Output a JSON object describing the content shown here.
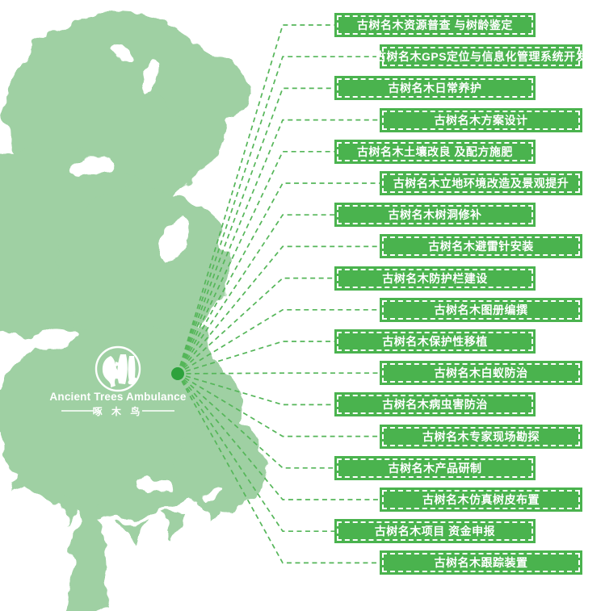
{
  "logo": {
    "title_en": "Ancient Trees Ambulance",
    "title_cn": "啄 木 鸟",
    "emblem": "woodpecker-on-tree-icon"
  },
  "services": [
    {
      "label": "古树名木资源普查 与树龄鉴定"
    },
    {
      "label": "古树名木GPS定位与信息化管理系统开发"
    },
    {
      "label": "古树名木日常养护"
    },
    {
      "label": "古树名木方案设计"
    },
    {
      "label": "古树名木土壤改良 及配方施肥"
    },
    {
      "label": "古树名木立地环境改造及景观提升"
    },
    {
      "label": "古树名木树洞修补"
    },
    {
      "label": "古树名木避雷针安装"
    },
    {
      "label": "古树名木防护栏建设"
    },
    {
      "label": "古树名木图册编撰"
    },
    {
      "label": "古树名木保护性移植"
    },
    {
      "label": "古树名木白蚁防治"
    },
    {
      "label": "古树名木病虫害防治"
    },
    {
      "label": "古树名木专家现场勘探"
    },
    {
      "label": "古树名木产品研制"
    },
    {
      "label": "古树名木仿真树皮布置"
    },
    {
      "label": "古树名木项目 资金申报"
    },
    {
      "label": "古树名木跟踪装置"
    }
  ],
  "colors": {
    "tree_green": "#9fd0a3",
    "box_green": "#4ab34e",
    "line_green": "#55b659",
    "dot_green": "#2da23c",
    "label_text": "#ffffff"
  }
}
